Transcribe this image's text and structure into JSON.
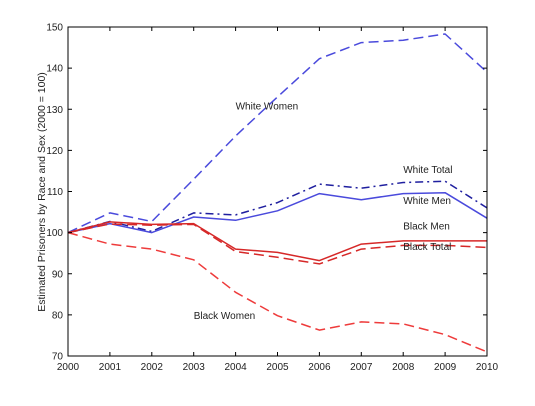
{
  "chart_data": {
    "type": "line",
    "title": "",
    "xlabel": "",
    "ylabel": "Estimated Prisoners by Race and Sex (2000 = 100)",
    "xlim": [
      2000,
      2010
    ],
    "ylim": [
      70,
      150
    ],
    "x": [
      2000,
      2001,
      2002,
      2003,
      2004,
      2005,
      2006,
      2007,
      2008,
      2009,
      2010
    ],
    "x_ticks": [
      2000,
      2001,
      2002,
      2003,
      2004,
      2005,
      2006,
      2007,
      2008,
      2009,
      2010
    ],
    "y_ticks": [
      70,
      80,
      90,
      100,
      110,
      120,
      130,
      140,
      150
    ],
    "grid": false,
    "legend": "none",
    "series": [
      {
        "name": "White Women",
        "color": "#4a4adc",
        "style": "dashed",
        "values": [
          100,
          104.8,
          102.7,
          113.0,
          123.5,
          133.0,
          142.3,
          146.2,
          146.8,
          148.3,
          139.0
        ],
        "label_at": [
          2004.0,
          130
        ]
      },
      {
        "name": "White Total",
        "color": "#1f1f9f",
        "style": "dashdot",
        "values": [
          100,
          102.7,
          100.3,
          104.8,
          104.3,
          107.3,
          111.8,
          110.8,
          112.2,
          112.5,
          106.0
        ],
        "label_at": [
          2008.0,
          114.5
        ]
      },
      {
        "name": "White Men",
        "color": "#4a4adc",
        "style": "solid",
        "values": [
          100,
          102.2,
          100.0,
          103.8,
          103.0,
          105.3,
          109.5,
          108.0,
          109.5,
          109.7,
          103.5
        ],
        "label_at": [
          2008.0,
          107.0
        ]
      },
      {
        "name": "Black Men",
        "color": "#d62828",
        "style": "solid",
        "values": [
          100,
          102.6,
          102.0,
          102.2,
          96.0,
          95.2,
          93.2,
          97.2,
          98.0,
          98.0,
          98.0
        ],
        "label_at": [
          2008.0,
          100.8
        ]
      },
      {
        "name": "Black Total",
        "color": "#d62828",
        "style": "dashed",
        "values": [
          100,
          102.1,
          101.8,
          102.0,
          95.4,
          94.0,
          92.4,
          96.0,
          96.9,
          96.9,
          96.4
        ],
        "label_at": [
          2008.0,
          95.8
        ]
      },
      {
        "name": "Black Women",
        "color": "#ee3b3b",
        "style": "dashed",
        "values": [
          100,
          97.2,
          96.0,
          93.4,
          85.5,
          79.8,
          76.3,
          78.3,
          77.8,
          75.2,
          71.0
        ],
        "label_at": [
          2003.0,
          79.0
        ]
      }
    ]
  }
}
